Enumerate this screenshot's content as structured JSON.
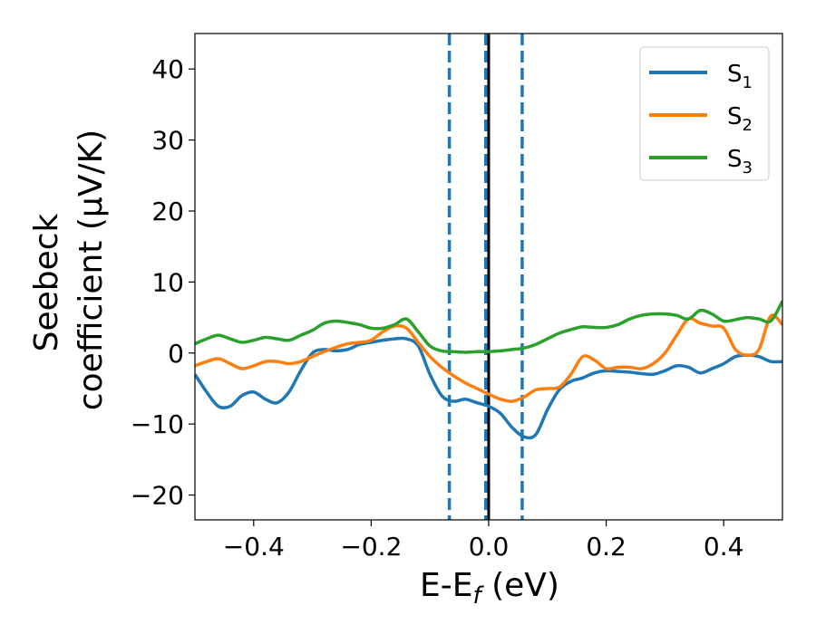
{
  "chart_data": {
    "type": "line",
    "xlabel_main": "E-E",
    "xlabel_sub": "f",
    "xlabel_unit": " (eV)",
    "ylabel_line1": "Seebeck",
    "ylabel_line2": "coefficient  (μV/K)",
    "xlim": [
      -0.5,
      0.5
    ],
    "ylim": [
      -23.5,
      45
    ],
    "x_ticks": [
      -0.4,
      -0.2,
      0.0,
      0.2,
      0.4
    ],
    "x_tick_labels": [
      "−0.4",
      "−0.2",
      "0.0",
      "0.2",
      "0.4"
    ],
    "y_ticks": [
      -20,
      -10,
      0,
      10,
      20,
      30,
      40
    ],
    "y_tick_labels": [
      "−20",
      "−10",
      "0",
      "10",
      "20",
      "30",
      "40"
    ],
    "grid": false,
    "legend_position": "top-right",
    "fermi_line": {
      "x": 0.0,
      "color": "#000000"
    },
    "dashed_lines": {
      "x": [
        -0.067,
        -0.005,
        0.057
      ],
      "color": "#1f77b4"
    },
    "series": [
      {
        "name": "S",
        "subscript": "1",
        "color": "#1f77b4",
        "x": [
          -0.5,
          -0.48,
          -0.46,
          -0.44,
          -0.42,
          -0.4,
          -0.38,
          -0.36,
          -0.34,
          -0.32,
          -0.3,
          -0.28,
          -0.26,
          -0.24,
          -0.22,
          -0.2,
          -0.18,
          -0.16,
          -0.14,
          -0.12,
          -0.1,
          -0.08,
          -0.06,
          -0.04,
          -0.02,
          0.0,
          0.02,
          0.04,
          0.06,
          0.08,
          0.1,
          0.12,
          0.14,
          0.16,
          0.18,
          0.2,
          0.22,
          0.24,
          0.26,
          0.28,
          0.3,
          0.32,
          0.34,
          0.36,
          0.38,
          0.4,
          0.42,
          0.44,
          0.46,
          0.48,
          0.5
        ],
        "y": [
          -3.0,
          -5.5,
          -7.5,
          -7.5,
          -6.0,
          -5.5,
          -6.5,
          -7.0,
          -5.5,
          -2.5,
          0.0,
          0.5,
          0.3,
          0.5,
          1.2,
          1.5,
          1.8,
          2.0,
          2.0,
          1.0,
          -3.0,
          -6.0,
          -6.8,
          -6.5,
          -7.0,
          -7.5,
          -8.5,
          -10.5,
          -11.8,
          -11.5,
          -8.0,
          -5.2,
          -4.0,
          -3.5,
          -2.8,
          -2.5,
          -2.6,
          -2.7,
          -2.9,
          -3.0,
          -2.5,
          -1.8,
          -2.0,
          -2.8,
          -2.2,
          -1.5,
          -0.5,
          -0.3,
          -0.5,
          -1.2,
          -1.2
        ]
      },
      {
        "name": "S",
        "subscript": "2",
        "color": "#ff7f0e",
        "x": [
          -0.5,
          -0.48,
          -0.46,
          -0.44,
          -0.42,
          -0.4,
          -0.38,
          -0.36,
          -0.34,
          -0.32,
          -0.3,
          -0.28,
          -0.26,
          -0.24,
          -0.22,
          -0.2,
          -0.18,
          -0.16,
          -0.14,
          -0.12,
          -0.1,
          -0.08,
          -0.06,
          -0.04,
          -0.02,
          0.0,
          0.02,
          0.04,
          0.06,
          0.08,
          0.1,
          0.12,
          0.14,
          0.16,
          0.18,
          0.2,
          0.22,
          0.24,
          0.26,
          0.28,
          0.3,
          0.32,
          0.34,
          0.36,
          0.38,
          0.4,
          0.42,
          0.44,
          0.46,
          0.48,
          0.5
        ],
        "y": [
          -1.8,
          -1.2,
          -0.8,
          -1.5,
          -2.2,
          -1.8,
          -1.2,
          -1.2,
          -1.5,
          -1.2,
          -0.5,
          0.2,
          0.8,
          1.3,
          1.5,
          1.8,
          3.0,
          3.8,
          3.5,
          1.5,
          -0.5,
          -2.0,
          -3.2,
          -4.2,
          -5.0,
          -5.8,
          -6.5,
          -6.8,
          -6.2,
          -5.2,
          -5.0,
          -4.8,
          -3.0,
          -0.5,
          -1.0,
          -2.2,
          -2.0,
          -2.0,
          -2.2,
          -1.5,
          0.0,
          2.5,
          4.8,
          4.2,
          3.8,
          3.5,
          0.5,
          -0.3,
          0.5,
          5.2,
          4.0
        ]
      },
      {
        "name": "S",
        "subscript": "3",
        "color": "#2ca02c",
        "x": [
          -0.5,
          -0.48,
          -0.46,
          -0.44,
          -0.42,
          -0.4,
          -0.38,
          -0.36,
          -0.34,
          -0.32,
          -0.3,
          -0.28,
          -0.26,
          -0.24,
          -0.22,
          -0.2,
          -0.18,
          -0.16,
          -0.14,
          -0.12,
          -0.1,
          -0.08,
          -0.06,
          -0.04,
          -0.02,
          0.0,
          0.02,
          0.04,
          0.06,
          0.08,
          0.1,
          0.12,
          0.14,
          0.16,
          0.18,
          0.2,
          0.22,
          0.24,
          0.26,
          0.28,
          0.3,
          0.32,
          0.34,
          0.36,
          0.38,
          0.4,
          0.42,
          0.44,
          0.46,
          0.48,
          0.5
        ],
        "y": [
          1.3,
          2.0,
          2.5,
          2.0,
          1.5,
          1.8,
          2.2,
          2.0,
          1.8,
          2.5,
          3.2,
          4.2,
          4.5,
          4.3,
          4.0,
          3.5,
          3.5,
          4.0,
          4.8,
          3.0,
          1.0,
          0.3,
          0.2,
          0.1,
          0.2,
          0.2,
          0.3,
          0.5,
          0.7,
          1.2,
          2.0,
          2.8,
          3.3,
          3.7,
          3.6,
          3.6,
          4.0,
          4.8,
          5.3,
          5.5,
          5.5,
          5.3,
          4.8,
          6.0,
          5.5,
          4.5,
          4.7,
          5.0,
          4.8,
          4.5,
          7.3
        ]
      }
    ]
  }
}
